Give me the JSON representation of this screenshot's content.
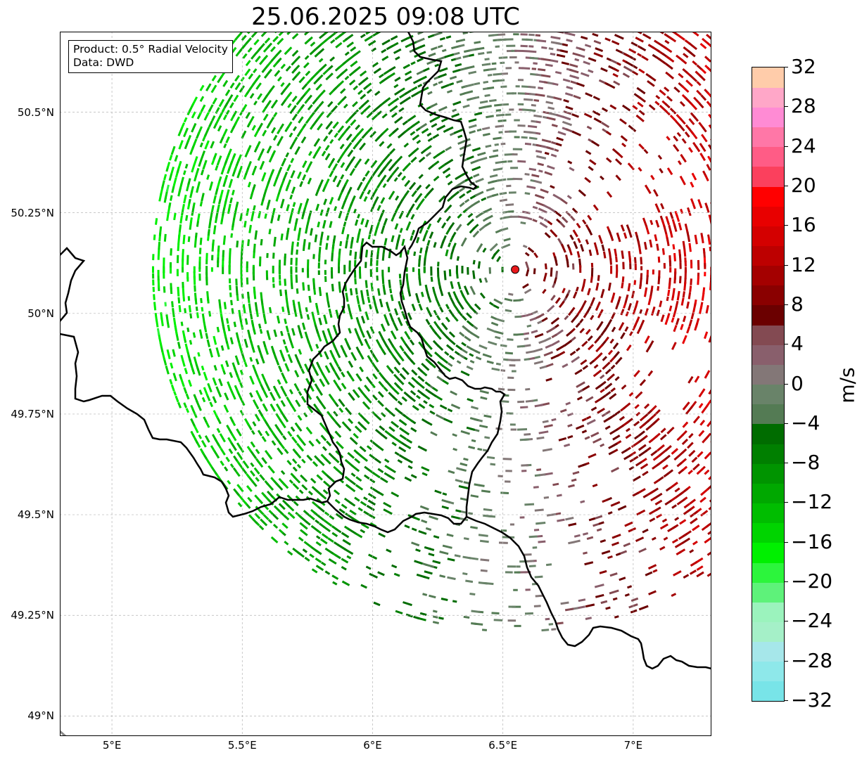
{
  "title": "25.06.2025 09:08 UTC",
  "info": {
    "product": "Product: 0.5° Radial Velocity",
    "source": "Data: DWD"
  },
  "map": {
    "lon_range": [
      4.8,
      7.3
    ],
    "lat_range": [
      48.95,
      50.7
    ],
    "x_ticks": [
      {
        "lon": 5.0,
        "label": "5°E"
      },
      {
        "lon": 5.5,
        "label": "5.5°E"
      },
      {
        "lon": 6.0,
        "label": "6°E"
      },
      {
        "lon": 6.5,
        "label": "6.5°E"
      },
      {
        "lon": 7.0,
        "label": "7°E"
      }
    ],
    "y_ticks": [
      {
        "lat": 50.5,
        "label": "50.5°N"
      },
      {
        "lat": 50.25,
        "label": "50.25°N"
      },
      {
        "lat": 50.0,
        "label": "50°N"
      },
      {
        "lat": 49.75,
        "label": "49.75°N"
      },
      {
        "lat": 49.5,
        "label": "49.5°N"
      },
      {
        "lat": 49.25,
        "label": "49.25°N"
      },
      {
        "lat": 49.0,
        "label": "49°N"
      }
    ],
    "radar_site": {
      "lon": 6.547,
      "lat": 50.109,
      "color": "#e8191c"
    },
    "grid_color": "#b5b5b5",
    "border_color": "#000000"
  },
  "colorbar": {
    "label": "m/s",
    "min": -32,
    "max": 32,
    "ticks": [
      "32",
      "28",
      "24",
      "20",
      "16",
      "12",
      "8",
      "4",
      "0",
      "−4",
      "−8",
      "−12",
      "−16",
      "−20",
      "−24",
      "−28",
      "−32"
    ],
    "tick_values": [
      32,
      28,
      24,
      20,
      16,
      12,
      8,
      4,
      0,
      -4,
      -8,
      -12,
      -16,
      -20,
      -24,
      -28,
      -32
    ],
    "colors_low_to_high": [
      "#78e4e8",
      "#8ee8ea",
      "#a6e7ea",
      "#a5f0c8",
      "#9bf3bd",
      "#5ef27a",
      "#2cf53c",
      "#00f000",
      "#00d400",
      "#00bd00",
      "#00a800",
      "#009400",
      "#007f00",
      "#006c00",
      "#547b54",
      "#698369",
      "#837777",
      "#895f6c",
      "#834a52",
      "#6b0000",
      "#8a0000",
      "#a40000",
      "#bd0000",
      "#d40000",
      "#e80000",
      "#ff0000",
      "#fb405d",
      "#ff5c86",
      "#ff77a7",
      "#ff8bd4",
      "#ffa7c8",
      "#ffccaa"
    ]
  }
}
